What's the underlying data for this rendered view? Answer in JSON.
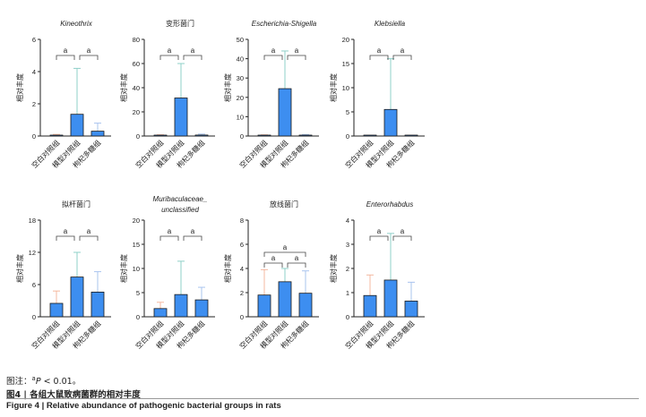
{
  "chart_data": [
    {
      "type": "bar",
      "title": "Kineothrix",
      "title_italic": true,
      "ylabel": "相对丰度",
      "categories": [
        "空白对照组",
        "模型对照组",
        "枸杞多糖组"
      ],
      "values": [
        0.05,
        1.35,
        0.3
      ],
      "errors": [
        0.05,
        2.85,
        0.5
      ],
      "ylim": [
        0,
        6
      ],
      "yticks": [
        "0",
        "2",
        "4",
        "6"
      ],
      "annotations": [
        "a",
        "a"
      ]
    },
    {
      "type": "bar",
      "title": "变形菌门",
      "title_italic": false,
      "ylabel": "相对丰度",
      "categories": [
        "空白对照组",
        "模型对照组",
        "枸杞多糖组"
      ],
      "values": [
        0.5,
        31.5,
        0.8
      ],
      "errors": [
        0.5,
        28.5,
        0.8
      ],
      "ylim": [
        0,
        80
      ],
      "yticks": [
        "0",
        "20",
        "40",
        "60",
        "80"
      ],
      "annotations": [
        "a",
        "a"
      ]
    },
    {
      "type": "bar",
      "title": "Escherichia-Shigella",
      "title_italic": true,
      "ylabel": "相对丰度",
      "categories": [
        "空白对照组",
        "模型对照组",
        "枸杞多糖组"
      ],
      "values": [
        0.3,
        24.5,
        0.4
      ],
      "errors": [
        0.3,
        19.5,
        0.4
      ],
      "ylim": [
        0,
        50
      ],
      "yticks": [
        "0",
        "10",
        "20",
        "30",
        "40",
        "50"
      ],
      "annotations": [
        "a",
        "a"
      ]
    },
    {
      "type": "bar",
      "title": "Klebsiella",
      "title_italic": true,
      "ylabel": "相对丰度",
      "categories": [
        "空白对照组",
        "模型对照组",
        "枸杞多糖组"
      ],
      "values": [
        0,
        5.5,
        0
      ],
      "errors": [
        0,
        10.5,
        0
      ],
      "ylim": [
        0,
        20
      ],
      "yticks": [
        "0",
        "5",
        "10",
        "15",
        "20"
      ],
      "annotations": [
        "a",
        "a"
      ]
    },
    {
      "type": "bar",
      "title": "拟杆菌门",
      "title_italic": false,
      "ylabel": "相对丰度",
      "categories": [
        "空白对照组",
        "模型对照组",
        "枸杞多糖组"
      ],
      "values": [
        2.5,
        7.4,
        4.6
      ],
      "errors": [
        2.3,
        4.6,
        3.8
      ],
      "ylim": [
        0,
        18
      ],
      "yticks": [
        "0",
        "6",
        "12",
        "18"
      ],
      "annotations": [
        "a",
        "a"
      ]
    },
    {
      "type": "bar",
      "title": "Muribaculaceae_unclassified",
      "title_lines": [
        "Muribaculaceae_",
        "unclassified"
      ],
      "title_italic": true,
      "ylabel": "相对丰度",
      "categories": [
        "空白对照组",
        "模型对照组",
        "枸杞多糖组"
      ],
      "values": [
        1.7,
        4.6,
        3.5
      ],
      "errors": [
        1.3,
        6.9,
        2.6
      ],
      "ylim": [
        0,
        20
      ],
      "yticks": [
        "0",
        "5",
        "10",
        "15",
        "20"
      ],
      "annotations": [
        "a",
        "a"
      ]
    },
    {
      "type": "bar",
      "title": "放线菌门",
      "title_italic": false,
      "ylabel": "相对丰度",
      "categories": [
        "空白对照组",
        "模型对照组",
        "枸杞多糖组"
      ],
      "values": [
        1.8,
        2.9,
        1.95
      ],
      "errors": [
        2.1,
        1.1,
        1.85
      ],
      "ylim": [
        0,
        8
      ],
      "yticks": [
        "0",
        "2",
        "4",
        "6",
        "8"
      ],
      "annotations": [
        "a",
        "a",
        "a"
      ]
    },
    {
      "type": "bar",
      "title": "Enterorhabdus",
      "title_italic": true,
      "ylabel": "相对丰度",
      "categories": [
        "空白对照组",
        "模型对照组",
        "枸杞多糖组"
      ],
      "values": [
        0.88,
        1.52,
        0.65
      ],
      "errors": [
        0.85,
        1.93,
        0.78
      ],
      "ylim": [
        0,
        4
      ],
      "yticks": [
        "0",
        "1",
        "2",
        "3",
        "4"
      ],
      "annotations": [
        "a",
        "a"
      ]
    }
  ],
  "captions": {
    "note_prefix": "图注：",
    "note_sup": "a",
    "note_p": "P",
    "note_rest": " < 0.01。",
    "figure_cn": "图4 | 各组大鼠致病菌群的相对丰度",
    "figure_en_label": "Figure 4",
    "figure_en_text": "  |  Relative abundance of pathogenic bacterial groups in rats"
  },
  "colors": {
    "bar_fill": "#3d8ef0",
    "bar_edge": "#1a1a1a",
    "err_blank": "#f4b8a0",
    "err_model": "#8fd0c8",
    "err_lbp": "#a9c4ee",
    "axis": "#222222"
  }
}
